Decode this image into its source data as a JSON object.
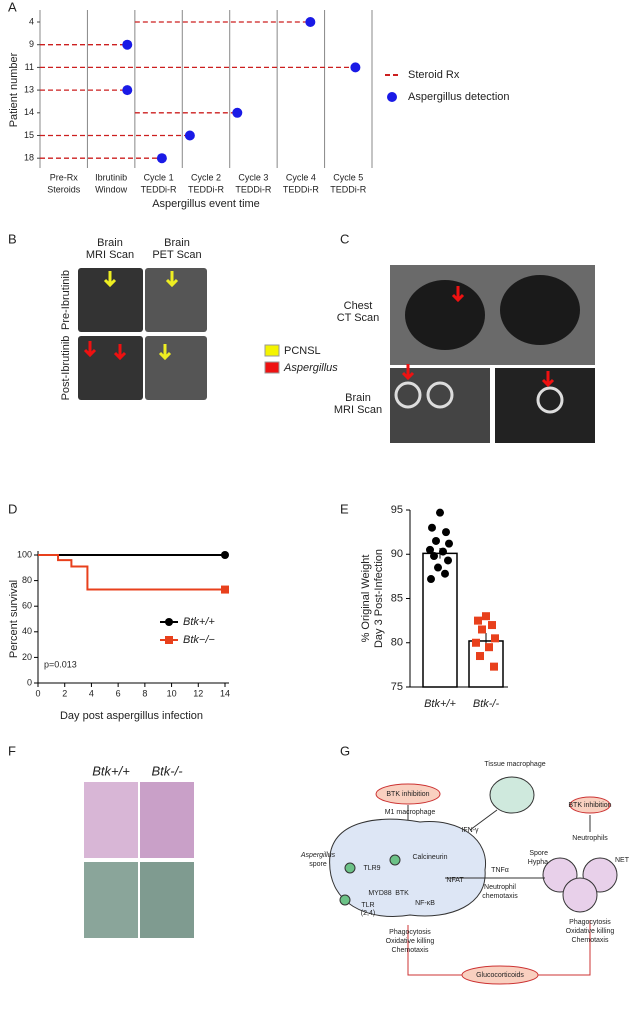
{
  "panel_letters": [
    "A",
    "B",
    "C",
    "D",
    "E",
    "F",
    "G"
  ],
  "chart_data": [
    {
      "type": "timeline",
      "categories": [
        [
          "Pre-Rx",
          "Steroids"
        ],
        [
          "Ibrutinib",
          "Window"
        ],
        [
          "Cycle 1",
          "TEDDi-R"
        ],
        [
          "Cycle 2",
          "TEDDi-R"
        ],
        [
          "Cycle 3",
          "TEDDi-R"
        ],
        [
          "Cycle 4",
          "TEDDi-R"
        ],
        [
          "Cycle 5",
          "TEDDi-R"
        ]
      ],
      "xlim": [
        0,
        7
      ],
      "x_label": "Aspergillus event time",
      "y_label": "Patient number",
      "patients": [
        "4",
        "9",
        "11",
        "13",
        "14",
        "15",
        "18"
      ],
      "series": [
        {
          "name": "Steroid Rx",
          "color": "#cc1f1f",
          "values": [
            2.0,
            0,
            0,
            0,
            2.0,
            0,
            0
          ]
        },
        {
          "name": "Aspergillus detection",
          "color": "#1a1ae6",
          "values": [
            5.7,
            1.84,
            6.65,
            1.84,
            4.16,
            3.16,
            2.57
          ]
        }
      ]
    },
    {
      "type": "line",
      "x_label": "Day post aspergillus infection",
      "y_label": "Percent survival",
      "annotation": "p=0.013",
      "xlim": [
        0,
        14
      ],
      "xticks": [
        0,
        2,
        4,
        6,
        8,
        10,
        12,
        14
      ],
      "ylim": [
        0,
        100
      ],
      "yticks": [
        0,
        20,
        40,
        60,
        80,
        100
      ],
      "series": [
        {
          "name": "Btk+/+",
          "color": "#000000",
          "x": [
            0,
            14
          ],
          "values": [
            100,
            100
          ]
        },
        {
          "name": "Btk−/−",
          "color": "#e8401c",
          "x": [
            0,
            1.5,
            1.5,
            2.5,
            2.5,
            3.7,
            3.7,
            14
          ],
          "values": [
            100,
            100,
            96,
            96,
            91,
            91,
            73,
            73
          ]
        }
      ]
    },
    {
      "type": "bar-scatter",
      "y_label": [
        "% Original Weight",
        "Day 3 Post-Infection"
      ],
      "categories": [
        "Btk+/+",
        "Btk-/-"
      ],
      "ylim": [
        75,
        95
      ],
      "yticks": [
        75,
        80,
        85,
        90,
        95
      ],
      "values": [
        90.1,
        80.2
      ],
      "errors": [
        0.6,
        0.9
      ],
      "colors": [
        "#000000",
        "#e8401c"
      ],
      "points": [
        [
          94.7,
          93.0,
          92.5,
          91.5,
          91.2,
          90.5,
          90.3,
          89.8,
          89.3,
          88.5,
          87.8,
          87.2
        ],
        [
          83.0,
          82.5,
          82.0,
          81.5,
          80.5,
          80.0,
          79.5,
          78.5,
          77.3
        ]
      ]
    }
  ],
  "panel_b": {
    "col1": [
      "Brain",
      "MRI Scan"
    ],
    "col2": [
      "Brain",
      "PET Scan"
    ],
    "row1": "Pre-Ibrutinib",
    "row2": "Post-Ibrutinib",
    "legend": [
      "PCNSL",
      "Aspergillus"
    ]
  },
  "panel_c": {
    "chest": [
      "Chest",
      "CT Scan"
    ],
    "brain": [
      "Brain",
      "MRI Scan"
    ]
  },
  "panel_f": {
    "col1": "Btk+/+",
    "col2": "Btk-/-"
  },
  "panel_g": {
    "tissue_macrophage": "Tissue macrophage",
    "btk_inhibition_1": "BTK inhibition",
    "m1": "M1 macrophage",
    "ifn": "IFN-γ",
    "btk_inhibition_2": "BTK inhibition",
    "neutrophils": "Neutrophils",
    "aspergillus": "Aspergillus",
    "spore": "spore",
    "tlr9": "TLR9",
    "calcineurin": "Calcineurin",
    "nfat": "NFAT",
    "tlr": "TLR",
    "tlr_sub": "(2,4)",
    "myd88": "MYD88",
    "btk": "BTK",
    "nfkb": "NF-κB",
    "mac_functions": [
      "Phagocytosis",
      "Oxidative killing",
      "Chemotaxis"
    ],
    "tnf": "TNFα",
    "neut_chemo": [
      "Neutrophil",
      "chemotaxis"
    ],
    "spore2": "Spore",
    "hypha": "Hypha",
    "net": "NET",
    "neut_functions": [
      "Phagocytosis",
      "Oxidative killing",
      "Chemotaxis"
    ],
    "gluco": "Glucocorticoids"
  }
}
